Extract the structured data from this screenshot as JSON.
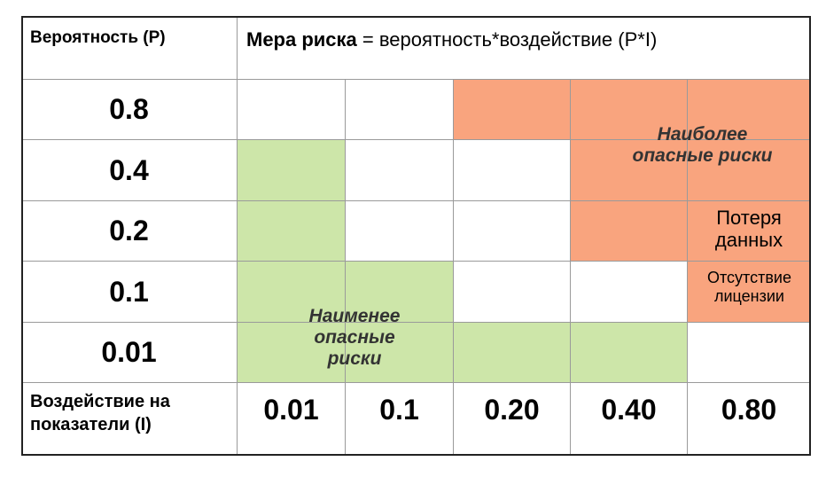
{
  "header": {
    "probability": "Вероятность (P)",
    "measure_bold": "Мера риска",
    "measure_rest": " = вероятность*воздействие (P*I)"
  },
  "rows": [
    {
      "label": "0.8",
      "cells": [
        "#ffffff",
        "#ffffff",
        "#f9a47e",
        "#f9a47e",
        "#f9a47e"
      ]
    },
    {
      "label": "0.4",
      "cells": [
        "#cde6a9",
        "#ffffff",
        "#ffffff",
        "#f9a47e",
        "#f9a47e"
      ]
    },
    {
      "label": "0.2",
      "cells": [
        "#cde6a9",
        "#ffffff",
        "#ffffff",
        "#f9a47e",
        "#f9a47e"
      ]
    },
    {
      "label": "0.1",
      "cells": [
        "#cde6a9",
        "#cde6a9",
        "#ffffff",
        "#ffffff",
        "#f9a47e"
      ]
    },
    {
      "label": "0.01",
      "cells": [
        "#cde6a9",
        "#cde6a9",
        "#cde6a9",
        "#cde6a9",
        "#ffffff"
      ]
    }
  ],
  "footer": {
    "label": "Воздействие на показатели (I)",
    "impacts": [
      "0.01",
      "0.1",
      "0.20",
      "0.40",
      "0.80"
    ]
  },
  "annotations": {
    "most_dangerous": "Наиболее опасные риски",
    "data_loss": "Потеря данных",
    "no_license": "Отсутствие лицензии",
    "least_dangerous": "Наименее опасные риски"
  }
}
